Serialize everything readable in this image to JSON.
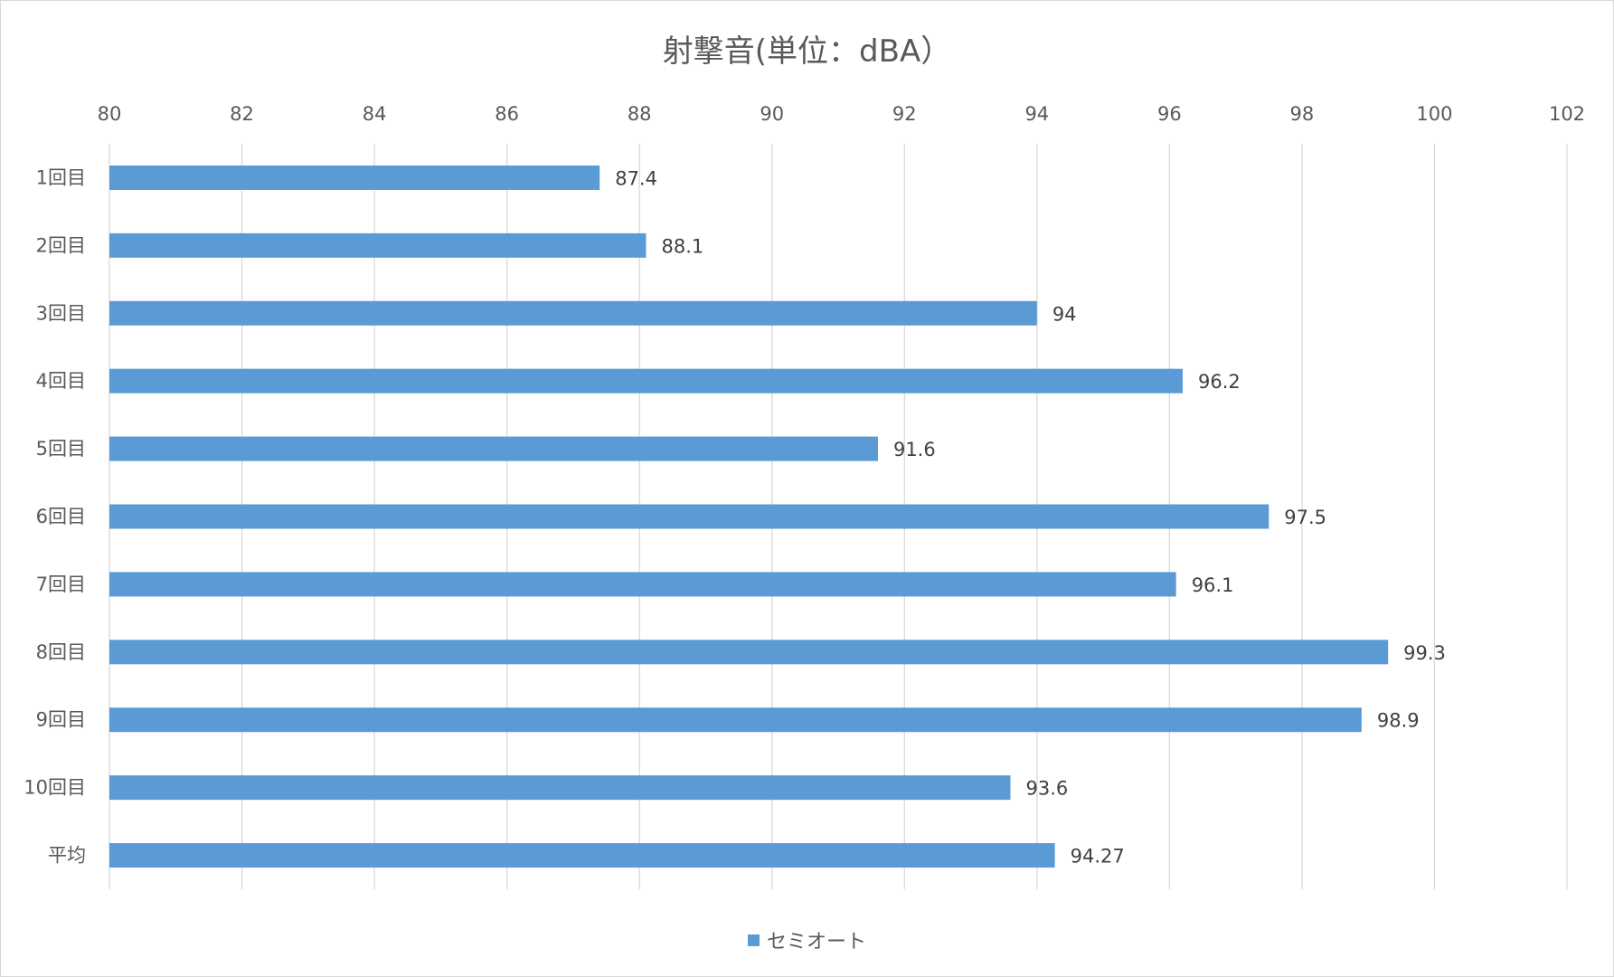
{
  "chart_data": {
    "type": "bar",
    "orientation": "horizontal",
    "title": "射撃音(単位：dBA）",
    "xlabel": "",
    "ylabel": "",
    "categories": [
      "1回目",
      "2回目",
      "3回目",
      "4回目",
      "5回目",
      "6回目",
      "7回目",
      "8回目",
      "9回目",
      "10回目",
      "平均"
    ],
    "series": [
      {
        "name": "セミオート",
        "values": [
          87.4,
          88.1,
          94,
          96.2,
          91.6,
          97.5,
          96.1,
          99.3,
          98.9,
          93.6,
          94.27
        ],
        "color": "#5b9bd5"
      }
    ],
    "xlim": [
      80,
      102
    ],
    "xticks": [
      80,
      82,
      84,
      86,
      88,
      90,
      92,
      94,
      96,
      98,
      100,
      102
    ],
    "axis_position": "top",
    "grid": true,
    "legend": "bottom",
    "colors": {
      "bar": "#5b9bd5",
      "grid": "#d9d9d9",
      "text": "#595959"
    }
  }
}
